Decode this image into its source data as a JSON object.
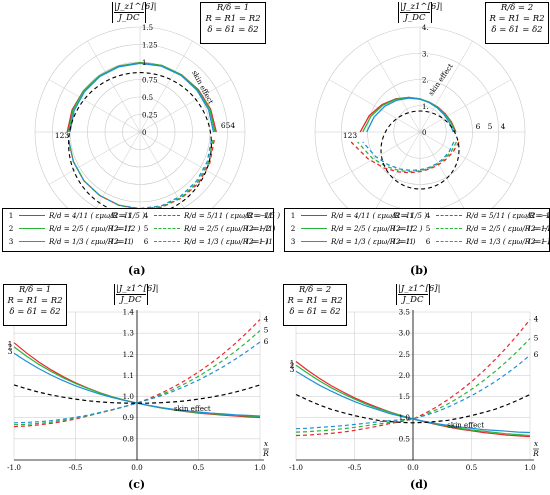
{
  "chart_data": [
    {
      "panel": "(a)",
      "type": "line",
      "coordinate_system": "polar",
      "ylabel": [
        "|J_z1^[6]|",
        "J_DC"
      ],
      "radial_ticks": [
        "1.5",
        "1.25",
        "1",
        "0.75",
        "0.5",
        "0.25",
        "0"
      ],
      "parameter_box": [
        "R/δ = 1",
        "R = R1 = R2",
        "δ = δ1 = δ2"
      ],
      "annotations": [
        "skin effect",
        "123",
        "654"
      ],
      "series": [
        {
          "name": "1",
          "values": [
            1.04,
            1.02,
            1.0,
            0.99,
            0.99,
            0.99,
            1.0,
            1.01,
            1.03,
            1.06,
            1.09
          ]
        },
        {
          "name": "2",
          "values": [
            1.02,
            1.01,
            1.0,
            0.99,
            0.99,
            0.99,
            1.0,
            1.01,
            1.02,
            1.05,
            1.07
          ]
        },
        {
          "name": "3",
          "values": [
            1.0,
            0.99,
            0.98,
            0.98,
            0.98,
            0.98,
            0.99,
            1.0,
            1.01,
            1.03,
            1.05
          ]
        },
        {
          "name": "4",
          "values": [
            1.06,
            1.05,
            1.04,
            1.02,
            1.01,
            0.99,
            0.98,
            0.98,
            0.99,
            1.0,
            1.02
          ]
        },
        {
          "name": "5",
          "values": [
            1.04,
            1.03,
            1.02,
            1.01,
            1.0,
            0.99,
            0.98,
            0.98,
            0.99,
            1.0,
            1.02
          ]
        },
        {
          "name": "6",
          "values": [
            1.02,
            1.01,
            1.0,
            0.99,
            0.99,
            0.98,
            0.98,
            0.98,
            0.99,
            1.0,
            1.02
          ]
        },
        {
          "name": "skin effect",
          "values": [
            1.02,
            1.02,
            1.02,
            1.02,
            1.02,
            1.02,
            1.02,
            1.02,
            1.02,
            1.02,
            1.02
          ]
        }
      ]
    },
    {
      "panel": "(b)",
      "type": "line",
      "coordinate_system": "polar",
      "ylabel": [
        "|J_z1^[6]|",
        "J_DC"
      ],
      "radial_ticks": [
        "4.",
        "3.",
        "2.",
        "1.",
        "0"
      ],
      "parameter_box": [
        "R/δ = 2",
        "R = R1 = R2",
        "δ = δ1 = δ2"
      ],
      "annotations": [
        "skin effect",
        "123",
        "6",
        "5",
        "4"
      ],
      "series": [
        {
          "name": "1",
          "values": [
            2.3,
            2.05,
            1.8,
            1.58,
            1.4,
            1.27,
            1.2,
            1.18,
            1.2,
            1.27,
            1.38
          ]
        },
        {
          "name": "2",
          "values": [
            2.2,
            1.98,
            1.76,
            1.56,
            1.4,
            1.28,
            1.2,
            1.17,
            1.18,
            1.25,
            1.35
          ]
        },
        {
          "name": "3",
          "values": [
            2.05,
            1.86,
            1.68,
            1.51,
            1.37,
            1.26,
            1.18,
            1.14,
            1.14,
            1.19,
            1.28
          ]
        },
        {
          "name": "4",
          "values": [
            1.5,
            1.32,
            1.19,
            1.12,
            1.1,
            1.14,
            1.24,
            1.42,
            1.7,
            2.1,
            2.65
          ]
        },
        {
          "name": "5",
          "values": [
            1.4,
            1.25,
            1.14,
            1.08,
            1.07,
            1.11,
            1.2,
            1.36,
            1.6,
            1.95,
            2.4
          ]
        },
        {
          "name": "6",
          "values": [
            1.3,
            1.18,
            1.1,
            1.05,
            1.04,
            1.07,
            1.15,
            1.29,
            1.5,
            1.8,
            2.2
          ]
        },
        {
          "name": "skin effect",
          "values": [
            1.5,
            1.5,
            1.5,
            1.5,
            1.5,
            1.5,
            1.5,
            1.5,
            1.5,
            1.5,
            1.5
          ]
        }
      ]
    },
    {
      "panel": "(c)",
      "type": "line",
      "x": [
        -1.0,
        -0.9,
        -0.8,
        -0.7,
        -0.6,
        -0.5,
        -0.4,
        -0.3,
        -0.2,
        -0.1,
        0.0,
        0.1,
        0.2,
        0.3,
        0.4,
        0.5,
        0.6,
        0.7,
        0.8,
        0.9,
        1.0
      ],
      "xlim": [
        -1.0,
        1.0
      ],
      "ylim": [
        0.7,
        1.4
      ],
      "xticks": [
        "-1.0",
        "-0.5",
        "0.0",
        "0.5",
        "1.0"
      ],
      "yticks": [
        "0.8",
        "0.9",
        "1.0",
        "1.1",
        "1.2",
        "1.3",
        "1.4"
      ],
      "xlabel": [
        "x",
        "R"
      ],
      "ylabel": [
        "|J_z1^[6]|",
        "J_DC"
      ],
      "parameter_box": [
        "R/δ = 1",
        "R = R1 = R2",
        "δ = δ1 = δ2"
      ],
      "annotations": [
        "skin effect",
        "1",
        "2",
        "3",
        "4",
        "5",
        "6"
      ],
      "series": [
        {
          "name": "1",
          "values": [
            1.255,
            1.207,
            1.164,
            1.127,
            1.094,
            1.065,
            1.04,
            1.018,
            0.999,
            0.983,
            0.969,
            0.957,
            0.946,
            0.937,
            0.929,
            0.922,
            0.917,
            0.912,
            0.908,
            0.904,
            0.901
          ]
        },
        {
          "name": "2",
          "values": [
            1.235,
            1.192,
            1.153,
            1.119,
            1.089,
            1.062,
            1.038,
            1.017,
            0.999,
            0.983,
            0.969,
            0.957,
            0.946,
            0.937,
            0.93,
            0.924,
            0.919,
            0.915,
            0.911,
            0.908,
            0.905
          ]
        },
        {
          "name": "3",
          "values": [
            1.205,
            1.167,
            1.133,
            1.102,
            1.075,
            1.051,
            1.03,
            1.011,
            0.995,
            0.981,
            0.969,
            0.958,
            0.948,
            0.94,
            0.933,
            0.927,
            0.922,
            0.918,
            0.914,
            0.911,
            0.908
          ]
        },
        {
          "name": "4",
          "values": [
            0.858,
            0.861,
            0.866,
            0.873,
            0.882,
            0.894,
            0.908,
            0.923,
            0.937,
            0.953,
            0.969,
            0.991,
            1.017,
            1.046,
            1.079,
            1.116,
            1.157,
            1.202,
            1.252,
            1.306,
            1.364
          ]
        },
        {
          "name": "5",
          "values": [
            0.867,
            0.869,
            0.873,
            0.879,
            0.888,
            0.898,
            0.91,
            0.924,
            0.938,
            0.953,
            0.969,
            0.988,
            1.01,
            1.035,
            1.064,
            1.096,
            1.132,
            1.171,
            1.214,
            1.261,
            1.312
          ]
        },
        {
          "name": "6",
          "values": [
            0.876,
            0.878,
            0.881,
            0.886,
            0.893,
            0.902,
            0.912,
            0.925,
            0.938,
            0.953,
            0.969,
            0.986,
            1.005,
            1.026,
            1.051,
            1.078,
            1.108,
            1.141,
            1.177,
            1.216,
            1.258
          ]
        },
        {
          "name": "skin effect",
          "values": [
            1.055,
            1.037,
            1.021,
            1.008,
            0.997,
            0.988,
            0.98,
            0.975,
            0.971,
            0.969,
            0.968,
            0.969,
            0.971,
            0.975,
            0.98,
            0.988,
            0.997,
            1.008,
            1.021,
            1.037,
            1.055
          ]
        }
      ]
    },
    {
      "panel": "(d)",
      "type": "line",
      "x": [
        -1.0,
        -0.9,
        -0.8,
        -0.7,
        -0.6,
        -0.5,
        -0.4,
        -0.3,
        -0.2,
        -0.1,
        0.0,
        0.1,
        0.2,
        0.3,
        0.4,
        0.5,
        0.6,
        0.7,
        0.8,
        0.9,
        1.0
      ],
      "xlim": [
        -1.0,
        1.0
      ],
      "ylim": [
        0.0,
        3.5
      ],
      "xticks": [
        "-1.0",
        "-0.5",
        "0.0",
        "0.5",
        "1.0"
      ],
      "yticks": [
        "0.5",
        "1.0",
        "1.5",
        "2.0",
        "2.5",
        "3.0",
        "3.5"
      ],
      "xlabel": [
        "x",
        "R"
      ],
      "ylabel": [
        "|J_z1^[6]|",
        "J_DC"
      ],
      "parameter_box": [
        "R/δ = 2",
        "R = R1 = R2",
        "δ = δ1 = δ2"
      ],
      "annotations": [
        "skin effect",
        "1",
        "2",
        "3",
        "4",
        "5",
        "6"
      ],
      "series": [
        {
          "name": "1",
          "values": [
            2.33,
            2.12,
            1.93,
            1.76,
            1.61,
            1.47,
            1.35,
            1.24,
            1.14,
            1.05,
            0.97,
            0.9,
            0.84,
            0.78,
            0.73,
            0.69,
            0.65,
            0.62,
            0.59,
            0.57,
            0.55
          ]
        },
        {
          "name": "2",
          "values": [
            2.24,
            2.05,
            1.87,
            1.71,
            1.57,
            1.44,
            1.32,
            1.22,
            1.13,
            1.05,
            0.97,
            0.91,
            0.85,
            0.8,
            0.75,
            0.71,
            0.68,
            0.65,
            0.62,
            0.6,
            0.58
          ]
        },
        {
          "name": "3",
          "values": [
            2.1,
            1.93,
            1.77,
            1.63,
            1.5,
            1.38,
            1.28,
            1.19,
            1.1,
            1.03,
            0.97,
            0.91,
            0.86,
            0.82,
            0.78,
            0.75,
            0.72,
            0.7,
            0.68,
            0.66,
            0.65
          ]
        },
        {
          "name": "4",
          "values": [
            0.58,
            0.59,
            0.61,
            0.63,
            0.66,
            0.7,
            0.75,
            0.8,
            0.86,
            0.91,
            0.97,
            1.1,
            1.25,
            1.43,
            1.63,
            1.85,
            2.1,
            2.37,
            2.66,
            2.98,
            3.32
          ]
        },
        {
          "name": "5",
          "values": [
            0.66,
            0.67,
            0.69,
            0.71,
            0.74,
            0.77,
            0.81,
            0.85,
            0.89,
            0.93,
            0.97,
            1.07,
            1.19,
            1.33,
            1.49,
            1.67,
            1.87,
            2.09,
            2.33,
            2.59,
            2.87
          ]
        },
        {
          "name": "6",
          "values": [
            0.74,
            0.75,
            0.77,
            0.79,
            0.81,
            0.84,
            0.87,
            0.9,
            0.93,
            0.95,
            0.97,
            1.05,
            1.14,
            1.25,
            1.38,
            1.52,
            1.68,
            1.85,
            2.04,
            2.25,
            2.48
          ]
        },
        {
          "name": "skin effect",
          "values": [
            1.55,
            1.42,
            1.3,
            1.2,
            1.12,
            1.05,
            0.99,
            0.94,
            0.91,
            0.89,
            0.88,
            0.89,
            0.91,
            0.94,
            0.99,
            1.05,
            1.12,
            1.2,
            1.3,
            1.42,
            1.55
          ]
        }
      ]
    }
  ],
  "legend": [
    {
      "num": "1",
      "ratio": "5",
      "frac": "R/d = 4/11 ( εμω/R = 1/5 )",
      "extra": "I2=I1",
      "color": "#e8282c",
      "dash": false
    },
    {
      "num": "2",
      "ratio": "2",
      "frac": "R/d = 2/5 ( εμω/R = 1/2 )",
      "extra": "I2=I1",
      "color": "#2ab53a",
      "dash": false
    },
    {
      "num": "3",
      "ratio": "1",
      "frac": "R/d = 1/3 ( εμω/R = 1 )",
      "extra": "I2=I1",
      "color": "#1e8fd8",
      "dash": false
    },
    {
      "num": "4",
      "ratio": "5",
      "frac": "R/d = 5/11 ( εμω/R = 1/5 )",
      "extra": "I2=−I1",
      "color": "#e8282c",
      "dash": true
    },
    {
      "num": "5",
      "ratio": "2",
      "frac": "R/d = 2/5 ( εμω/R = 1/2 )",
      "extra": "I2=−I1",
      "color": "#2ab53a",
      "dash": true
    },
    {
      "num": "6",
      "ratio": "1",
      "frac": "R/d = 1/3 ( εμω/R = 1 )",
      "extra": "I2=−I1",
      "color": "#1e8fd8",
      "dash": true
    }
  ],
  "panel_labels": [
    "(a)",
    "(b)",
    "(c)",
    "(d)"
  ],
  "colors": {
    "series1": "#e8282c",
    "series2": "#2ab53a",
    "series3": "#1e8fd8",
    "skin": "#000000",
    "grid": "#c8c8c8"
  }
}
